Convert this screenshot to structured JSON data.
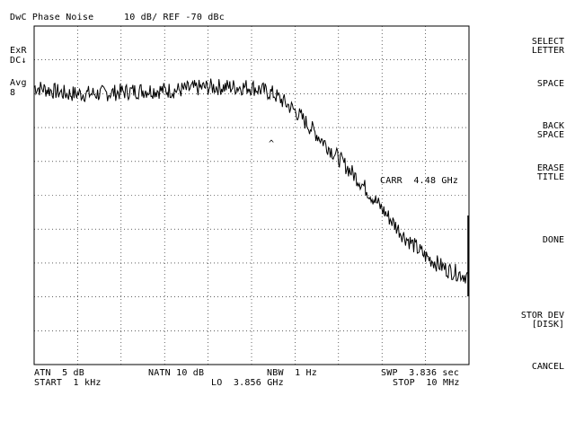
{
  "header": {
    "title": "DwC Phase Noise",
    "scale": "10 dB/ REF -70 dBc"
  },
  "left_annotations": {
    "exr": "ExR",
    "dc": "DC↓",
    "avg": "Avg",
    "avg_count": "8"
  },
  "marker": {
    "label": "CARR  4.48 GHz",
    "symbol": "^"
  },
  "footer": {
    "atn": "ATN  5 dB",
    "natn": "NATN 10 dB",
    "nbw": "NBW  1 Hz",
    "swp": "SWP  3.836 sec",
    "start": "START  1 kHz",
    "lo": "LO  3.856 GHz",
    "stop": "STOP  10 MHz"
  },
  "softkeys": [
    {
      "line1": "SELECT",
      "line2": "LETTER"
    },
    {
      "line1": "SPACE",
      "line2": ""
    },
    {
      "line1": "BACK",
      "line2": "SPACE"
    },
    {
      "line1": "ERASE",
      "line2": "TITLE"
    },
    {
      "line1": "DONE",
      "line2": ""
    },
    {
      "line1": "STOR DEV",
      "line2": "[DISK]"
    },
    {
      "line1": "CANCEL",
      "line2": ""
    }
  ],
  "chart_data": {
    "type": "line",
    "title": "DwC Phase Noise",
    "ref_level": -70,
    "scale_per_div": 10,
    "y_divisions": 10,
    "x_divisions": 10,
    "x_scale": "log",
    "xlim": [
      "1 kHz",
      "10 MHz"
    ],
    "ylim": [
      -170,
      -70
    ],
    "grid": true,
    "series": [
      {
        "x_decades": [
          0.0,
          0.3,
          0.6,
          1.0,
          1.3,
          1.6,
          2.0,
          2.2,
          2.4,
          2.6,
          2.8,
          3.0,
          3.2,
          3.4,
          3.6,
          3.8,
          4.0
        ],
        "values": [
          -88,
          -90,
          -90,
          -89,
          -89,
          -88,
          -88,
          -90,
          -95,
          -102,
          -109,
          -116,
          -124,
          -132,
          -138,
          -142,
          -144
        ]
      }
    ]
  }
}
